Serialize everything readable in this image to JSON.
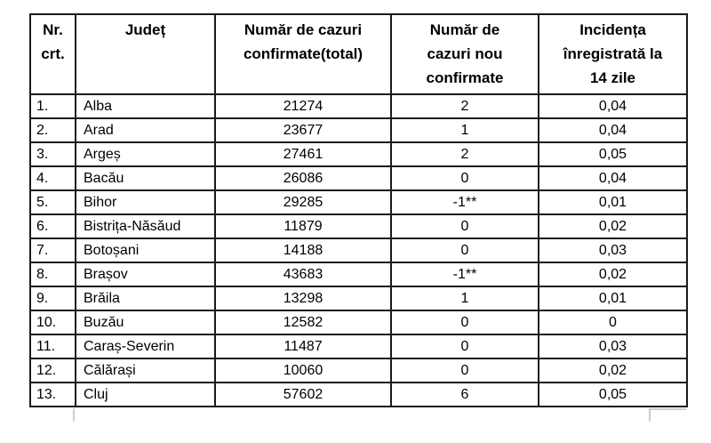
{
  "table": {
    "columns": [
      {
        "label": "Nr.\ncrt."
      },
      {
        "label": "Județ"
      },
      {
        "label": "Număr de cazuri\nconfirmate(total)"
      },
      {
        "label": "Număr de\ncazuri nou\nconfirmate"
      },
      {
        "label": "Incidența\nînregistrată la\n14 zile"
      }
    ],
    "rows": [
      {
        "nr": "1.",
        "judet": "Alba",
        "total": "21274",
        "nou": "2",
        "incidenta": "0,04"
      },
      {
        "nr": "2.",
        "judet": "Arad",
        "total": "23677",
        "nou": "1",
        "incidenta": "0,04"
      },
      {
        "nr": "3.",
        "judet": "Argeș",
        "total": "27461",
        "nou": "2",
        "incidenta": "0,05"
      },
      {
        "nr": "4.",
        "judet": "Bacău",
        "total": "26086",
        "nou": "0",
        "incidenta": "0,04"
      },
      {
        "nr": "5.",
        "judet": "Bihor",
        "total": "29285",
        "nou": "-1**",
        "incidenta": "0,01"
      },
      {
        "nr": "6.",
        "judet": "Bistrița-Năsăud",
        "total": "11879",
        "nou": "0",
        "incidenta": "0,02"
      },
      {
        "nr": "7.",
        "judet": "Botoșani",
        "total": "14188",
        "nou": "0",
        "incidenta": "0,03"
      },
      {
        "nr": "8.",
        "judet": "Brașov",
        "total": "43683",
        "nou": "-1**",
        "incidenta": "0,02"
      },
      {
        "nr": "9.",
        "judet": "Brăila",
        "total": "13298",
        "nou": "1",
        "incidenta": "0,01"
      },
      {
        "nr": "10.",
        "judet": "Buzău",
        "total": "12582",
        "nou": "0",
        "incidenta": "0"
      },
      {
        "nr": "11.",
        "judet": "Caraș-Severin",
        "total": "11487",
        "nou": "0",
        "incidenta": "0,03"
      },
      {
        "nr": "12.",
        "judet": "Călărași",
        "total": "10060",
        "nou": "0",
        "incidenta": "0,02"
      },
      {
        "nr": "13.",
        "judet": "Cluj",
        "total": "57602",
        "nou": "6",
        "incidenta": "0,05"
      }
    ]
  },
  "colors": {
    "border": "#1a1a1a",
    "text": "#000000",
    "background": "#ffffff",
    "artifact": "#c9ced3"
  }
}
